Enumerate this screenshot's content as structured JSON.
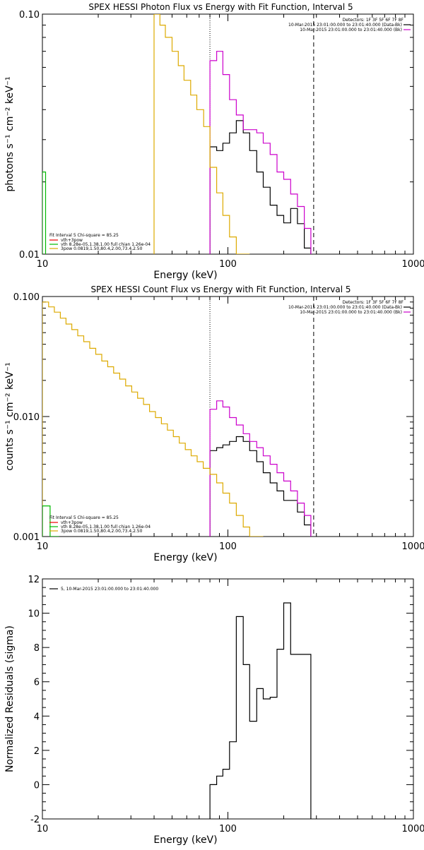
{
  "chart_data": [
    {
      "type": "line",
      "title": "SPEX HESSI Photon Flux vs Energy with Fit Function, Interval 5",
      "xlabel": "Energy (keV)",
      "ylabel": "photons s⁻¹ cm⁻² keV⁻¹",
      "xscale": "log",
      "yscale": "log",
      "xlim": [
        10,
        1000
      ],
      "ylim": [
        0.01,
        0.1
      ],
      "xticks": [
        10,
        100,
        1000
      ],
      "xtick_labels": [
        "10",
        "100",
        "1000"
      ],
      "yticks": [
        0.01,
        0.1
      ],
      "ytick_labels": [
        "0.01",
        "0.10"
      ],
      "vlines": [
        {
          "x": 80,
          "style": "dotted"
        },
        {
          "x": 290,
          "style": "dashed"
        }
      ],
      "legend_top": {
        "position": "top-right",
        "header": "Detectors: 1F 3F 5F 6F 7F 8F",
        "entries": [
          {
            "label": "10-Mar-2015 23:01:00.000 to 23:01:40.000 (Data-Bk)",
            "color": "#000000"
          },
          {
            "label": "10-Mar-2015 23:01:00.000 to 23:01:40.000 (Bk)",
            "color": "#cc00cc"
          }
        ]
      },
      "legend_bottom": {
        "position": "bottom-left",
        "header": "Fit Interval 5   Chi-square = 85.25",
        "entries": [
          {
            "label": "vth+3pow",
            "color": "#ee0000"
          },
          {
            "label": "vth 8.28e-05,1.38,1.00  full chian 1.26e-04",
            "color": "#00bb00"
          },
          {
            "label": "3pow 0.0819,1.50,80.4,2.00,73.4,2.50",
            "color": "#ddaa00"
          }
        ]
      },
      "series": [
        {
          "name": "10-Mar-2015 23:01:00.000 to 23:01:40.000 (Data-Bk)",
          "color": "#000000",
          "step_edges": [
            80,
            87,
            94,
            102,
            111,
            121,
            131,
            143,
            155,
            169,
            184,
            200,
            218,
            237,
            258,
            280
          ],
          "values": [
            0.028,
            0.027,
            0.029,
            0.032,
            0.036,
            0.032,
            0.027,
            0.022,
            0.019,
            0.016,
            0.0145,
            0.0135,
            0.0155,
            0.0134,
            0.0106
          ]
        },
        {
          "name": "10-Mar-2015 23:01:00.000 to 23:01:40.000 (Bk)",
          "color": "#cc00cc",
          "step_edges": [
            80,
            87,
            94,
            102,
            111,
            121,
            131,
            143,
            155,
            169,
            184,
            200,
            218,
            237,
            258,
            280
          ],
          "values": [
            0.064,
            0.07,
            0.056,
            0.044,
            0.038,
            0.033,
            0.033,
            0.032,
            0.029,
            0.026,
            0.022,
            0.0205,
            0.0178,
            0.0158,
            0.0128
          ]
        },
        {
          "name": "3pow 0.0819,1.50,80.4,2.00,73.4,2.50",
          "color": "#ddaa00",
          "step_edges": [
            40,
            43,
            46,
            50,
            54,
            58,
            63,
            68,
            74,
            80,
            87,
            94,
            102,
            111,
            121,
            131
          ],
          "values": [
            0.1,
            0.09,
            0.08,
            0.07,
            0.061,
            0.053,
            0.046,
            0.04,
            0.034,
            0.023,
            0.018,
            0.0145,
            0.0118,
            0.0096,
            0.0078
          ]
        },
        {
          "name": "vth 8.28e-05,1.38,1.00  full chian 1.26e-04",
          "color": "#00bb00",
          "step_edges": [
            10,
            10.4
          ],
          "values": [
            0.022
          ]
        }
      ]
    },
    {
      "type": "line",
      "title": "SPEX HESSI Count Flux vs Energy with Fit Function, Interval 5",
      "xlabel": "Energy (keV)",
      "ylabel": "counts s⁻¹ cm⁻² keV⁻¹",
      "xscale": "log",
      "yscale": "log",
      "xlim": [
        10,
        1000
      ],
      "ylim": [
        0.001,
        0.1
      ],
      "xticks": [
        10,
        100,
        1000
      ],
      "xtick_labels": [
        "10",
        "100",
        "1000"
      ],
      "yticks": [
        0.001,
        0.01,
        0.1
      ],
      "ytick_labels": [
        "0.001",
        "0.010",
        "0.100"
      ],
      "vlines": [
        {
          "x": 80,
          "style": "dotted"
        },
        {
          "x": 290,
          "style": "dashed"
        }
      ],
      "legend_top": {
        "position": "top-right",
        "header": "Detectors: 1F 3F 5F 6F 7F 8F",
        "entries": [
          {
            "label": "10-Mar-2015 23:01:00.000 to 23:01:40.000 (Data-Bk)",
            "color": "#000000"
          },
          {
            "label": "10-Mar-2015 23:01:00.000 to 23:01:40.000 (Bk)",
            "color": "#cc00cc"
          }
        ]
      },
      "legend_bottom": {
        "position": "bottom-left",
        "header": "Fit Interval 5   Chi-square = 85.25",
        "entries": [
          {
            "label": "vth+3pow",
            "color": "#ee0000"
          },
          {
            "label": "vth 8.28e-05,1.38,1.00  full chian 1.26e-04",
            "color": "#00bb00"
          },
          {
            "label": "3pow 0.0819,1.50,80.4,2.00,73.4,2.50",
            "color": "#ddaa00"
          }
        ]
      },
      "series": [
        {
          "name": "10-Mar-2015 23:01:00.000 to 23:01:40.000 (Data-Bk)",
          "color": "#000000",
          "step_edges": [
            80,
            87,
            94,
            102,
            111,
            121,
            131,
            143,
            155,
            169,
            184,
            200,
            218,
            237,
            258,
            280
          ],
          "values": [
            0.0052,
            0.0055,
            0.0058,
            0.0062,
            0.0068,
            0.0062,
            0.0052,
            0.0042,
            0.0034,
            0.0028,
            0.0024,
            0.002,
            0.002,
            0.0016,
            0.00125
          ]
        },
        {
          "name": "10-Mar-2015 23:01:00.000 to 23:01:40.000 (Bk)",
          "color": "#cc00cc",
          "step_edges": [
            80,
            87,
            94,
            102,
            111,
            121,
            131,
            143,
            155,
            169,
            184,
            200,
            218,
            237,
            258,
            280
          ],
          "values": [
            0.0115,
            0.0135,
            0.012,
            0.0098,
            0.0085,
            0.0072,
            0.0062,
            0.0055,
            0.0047,
            0.004,
            0.0034,
            0.0029,
            0.0024,
            0.0019,
            0.0015
          ]
        },
        {
          "name": "3pow 0.0819,1.50,80.4,2.00,73.4,2.50",
          "color": "#ddaa00",
          "step_edges": [
            10,
            10.8,
            11.6,
            12.5,
            13.4,
            14.4,
            15.5,
            16.7,
            18,
            19.4,
            20.9,
            22.5,
            24.2,
            26.1,
            28.1,
            30.3,
            32.6,
            35.1,
            37.8,
            40.7,
            43.8,
            47.2,
            50.8,
            54.7,
            58.9,
            63.4,
            68.3,
            73.6,
            80,
            87,
            94,
            102,
            111,
            121,
            131,
            143,
            155
          ],
          "values": [
            0.09,
            0.082,
            0.074,
            0.066,
            0.059,
            0.053,
            0.047,
            0.042,
            0.037,
            0.033,
            0.029,
            0.026,
            0.023,
            0.0205,
            0.018,
            0.016,
            0.0142,
            0.0126,
            0.011,
            0.0098,
            0.0087,
            0.0077,
            0.0068,
            0.006,
            0.0053,
            0.0047,
            0.0042,
            0.0037,
            0.0033,
            0.0028,
            0.0023,
            0.0019,
            0.0015,
            0.0012,
            0.001,
            0.0008
          ]
        },
        {
          "name": "vth 8.28e-05,1.38,1.00  full chian 1.26e-04",
          "color": "#00bb00",
          "step_edges": [
            10,
            11,
            12.3
          ],
          "values": [
            0.0018,
            0.0009
          ]
        }
      ]
    },
    {
      "type": "line",
      "title": "",
      "xlabel": "Energy (keV)",
      "ylabel": "Normalized Residuals (sigma)",
      "xscale": "log",
      "yscale": "linear",
      "xlim": [
        10,
        1000
      ],
      "ylim": [
        -2,
        12
      ],
      "xticks": [
        10,
        100,
        1000
      ],
      "xtick_labels": [
        "10",
        "100",
        "1000"
      ],
      "yticks": [
        -2,
        0,
        2,
        4,
        6,
        8,
        10,
        12
      ],
      "ytick_labels": [
        "-2",
        "0",
        "2",
        "4",
        "6",
        "8",
        "10",
        "12"
      ],
      "vlines": [],
      "legend_top": {
        "position": "top-left",
        "header": "",
        "entries": [
          {
            "label": "5, 10-Mar-2015 23:01:00.000 to 23:01:40.000",
            "color": "#000000"
          }
        ]
      },
      "series": [
        {
          "name": "5, 10-Mar-2015 23:01:00.000 to 23:01:40.000",
          "color": "#000000",
          "step_edges": [
            80,
            87,
            94,
            102,
            111,
            121,
            131,
            143,
            155,
            169,
            184,
            200,
            218,
            237,
            258,
            280
          ],
          "values": [
            0.0,
            0.5,
            0.9,
            2.5,
            9.8,
            7.0,
            3.7,
            5.6,
            5.0,
            5.1,
            7.9,
            10.6,
            7.6,
            7.6,
            7.6
          ],
          "baseline": -2
        }
      ]
    }
  ]
}
